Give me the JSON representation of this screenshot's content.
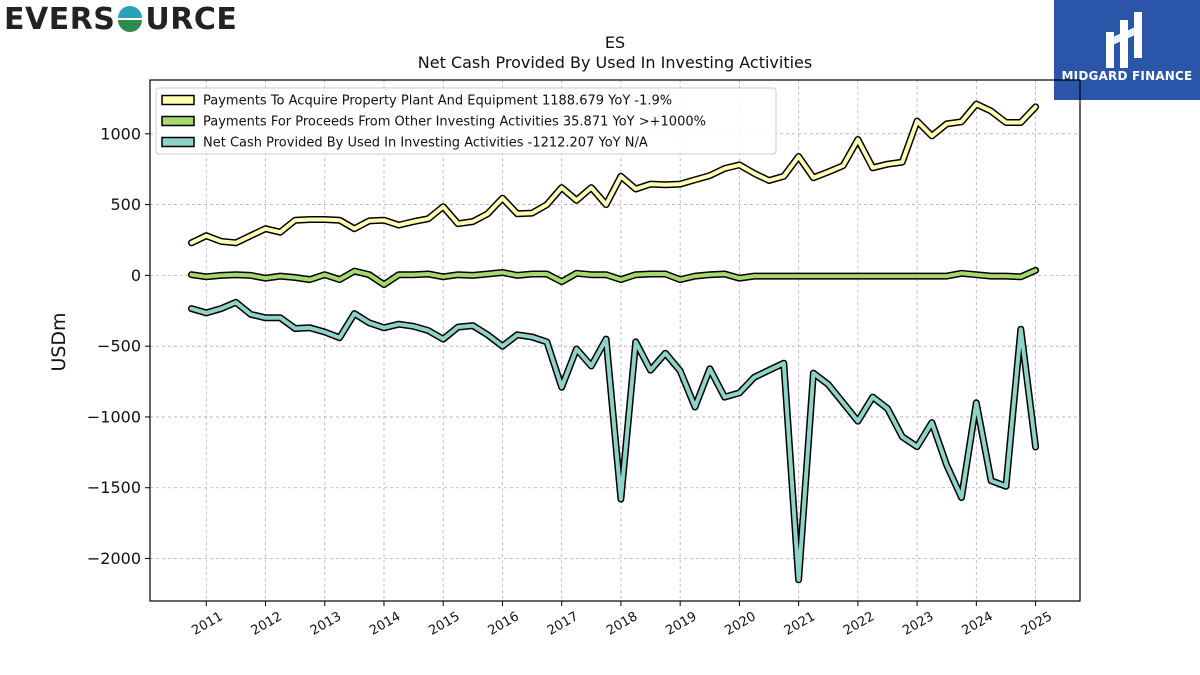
{
  "brand": {
    "left_logo_text_a": "EVERS",
    "left_logo_text_b": "URCE",
    "right_logo_text": "MIDGARD FINANCE"
  },
  "colors": {
    "capex": "#ffffb3",
    "other": "#a6d86e",
    "net": "#8dd3c7",
    "outline": "#000000",
    "grid": "#b0b0b0",
    "brand_blue": "#2a55a8",
    "logo_green": "#2e8b4e",
    "logo_teal": "#2aa3b8"
  },
  "chart_data": {
    "type": "line",
    "title": "ES",
    "subtitle": "Net Cash Provided By Used In Investing Activities",
    "ylabel": "USDm",
    "xlabel": "",
    "ylim": [
      -2300,
      1380
    ],
    "xlim": [
      2010.05,
      2025.75
    ],
    "yticks": [
      1000,
      500,
      0,
      -500,
      -1000,
      -1500,
      -2000
    ],
    "ytick_labels": [
      "1000",
      "500",
      "0",
      "−500",
      "−1000",
      "−1500",
      "−2000"
    ],
    "xticks": [
      2011,
      2012,
      2013,
      2014,
      2015,
      2016,
      2017,
      2018,
      2019,
      2020,
      2021,
      2022,
      2023,
      2024,
      2025
    ],
    "xtick_labels": [
      "2011",
      "2012",
      "2013",
      "2014",
      "2015",
      "2016",
      "2017",
      "2018",
      "2019",
      "2020",
      "2021",
      "2022",
      "2023",
      "2024",
      "2025"
    ],
    "grid": true,
    "legend_position": "top-left",
    "x": [
      2010.75,
      2011.0,
      2011.25,
      2011.5,
      2011.75,
      2012.0,
      2012.25,
      2012.5,
      2012.75,
      2013.0,
      2013.25,
      2013.5,
      2013.75,
      2014.0,
      2014.25,
      2014.5,
      2014.75,
      2015.0,
      2015.25,
      2015.5,
      2015.75,
      2016.0,
      2016.25,
      2016.5,
      2016.75,
      2017.0,
      2017.25,
      2017.5,
      2017.75,
      2018.0,
      2018.25,
      2018.5,
      2018.75,
      2019.0,
      2019.25,
      2019.5,
      2019.75,
      2020.0,
      2020.25,
      2020.5,
      2020.75,
      2021.0,
      2021.25,
      2021.5,
      2021.75,
      2022.0,
      2022.25,
      2022.5,
      2022.75,
      2023.0,
      2023.25,
      2023.5,
      2023.75,
      2024.0,
      2024.25,
      2024.5,
      2024.75,
      2025.0
    ],
    "series": [
      {
        "name": "Payments To Acquire Property Plant And Equipment",
        "legend_label": "Payments To Acquire Property Plant And Equipment  1188.679 YoY -1.9%",
        "color": "#ffffb3",
        "values": [
          230,
          280,
          240,
          230,
          280,
          330,
          305,
          390,
          395,
          395,
          390,
          330,
          385,
          390,
          355,
          380,
          400,
          485,
          365,
          380,
          435,
          545,
          435,
          440,
          500,
          620,
          530,
          620,
          500,
          700,
          610,
          645,
          640,
          645,
          675,
          705,
          755,
          780,
          720,
          670,
          700,
          840,
          690,
          730,
          775,
          960,
          760,
          785,
          800,
          1090,
          985,
          1070,
          1085,
          1210,
          1160,
          1080,
          1080,
          1190
        ]
      },
      {
        "name": "Payments For Proceeds From Other Investing Activities",
        "legend_label": "Payments For Proceeds From Other Investing Activities  35.871 YoY >+1000%",
        "color": "#a6d86e",
        "values": [
          5,
          -10,
          0,
          5,
          0,
          -20,
          -5,
          -15,
          -30,
          5,
          -30,
          30,
          5,
          -65,
          5,
          5,
          10,
          -10,
          5,
          0,
          10,
          20,
          0,
          10,
          10,
          -45,
          15,
          5,
          5,
          -30,
          5,
          10,
          10,
          -30,
          -5,
          5,
          10,
          -20,
          -5,
          -5,
          -5,
          -5,
          -5,
          -5,
          -5,
          -5,
          -5,
          -5,
          -5,
          -5,
          -5,
          -5,
          15,
          5,
          -5,
          -5,
          -10,
          36
        ]
      },
      {
        "name": "Net Cash Provided By Used In Investing Activities",
        "legend_label": "Net Cash Provided By Used In Investing Activities  -1212.207 YoY N/A",
        "color": "#8dd3c7",
        "values": [
          -235,
          -265,
          -235,
          -190,
          -275,
          -300,
          -300,
          -375,
          -370,
          -400,
          -440,
          -270,
          -335,
          -370,
          -345,
          -360,
          -390,
          -450,
          -365,
          -355,
          -420,
          -500,
          -420,
          -435,
          -470,
          -790,
          -520,
          -640,
          -450,
          -1580,
          -470,
          -670,
          -550,
          -675,
          -930,
          -660,
          -860,
          -830,
          -720,
          -670,
          -620,
          -2150,
          -690,
          -770,
          -900,
          -1030,
          -860,
          -940,
          -1140,
          -1210,
          -1040,
          -1340,
          -1570,
          -900,
          -1450,
          -1490,
          -380,
          -1212
        ]
      }
    ]
  }
}
